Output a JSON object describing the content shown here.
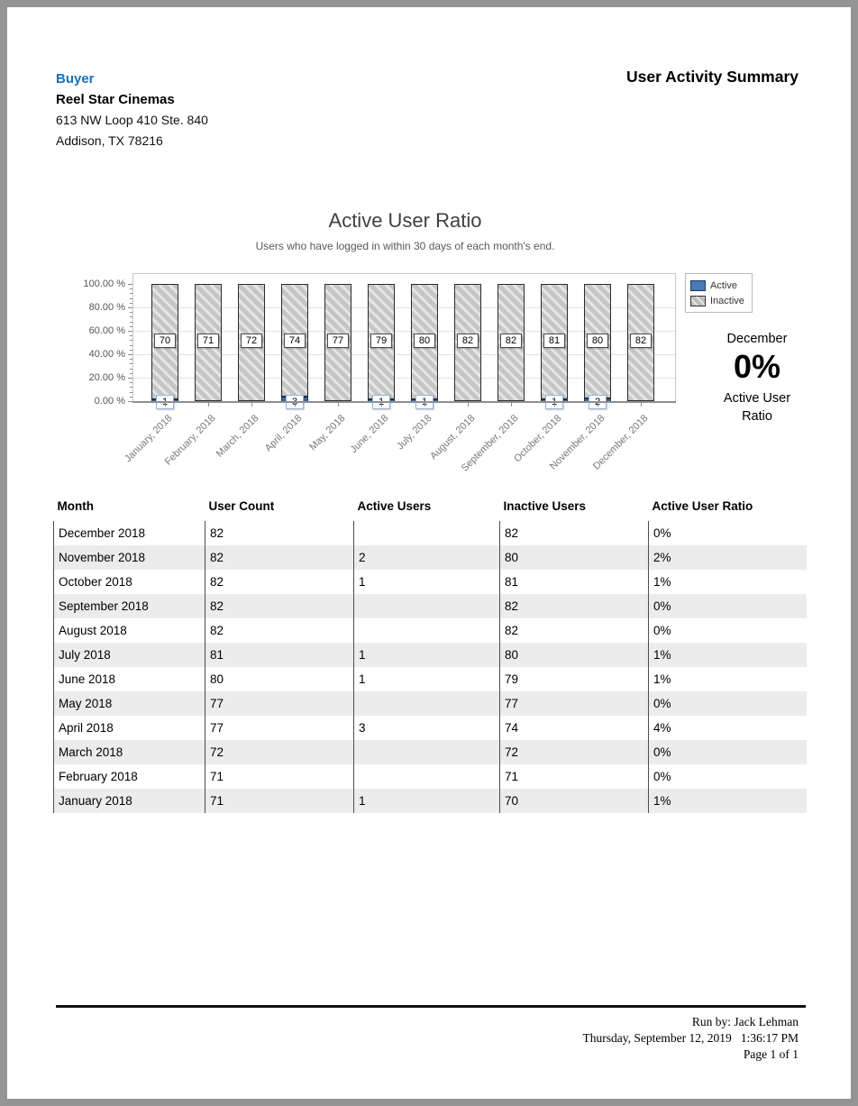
{
  "header": {
    "buyer_label": "Buyer",
    "company": "Reel Star Cinemas",
    "address_line1": "613 NW Loop 410 Ste. 840",
    "address_line2": "Addison, TX 78216",
    "report_title": "User Activity Summary"
  },
  "chart_data": {
    "type": "bar",
    "stacked": true,
    "title": "Active User Ratio",
    "subtitle": "Users who have logged in within 30 days of each month's end.",
    "categories": [
      "January, 2018",
      "February, 2018",
      "March, 2018",
      "April, 2018",
      "May, 2018",
      "June, 2018",
      "July, 2018",
      "August, 2018",
      "September, 2018",
      "October, 2018",
      "November, 2018",
      "December, 2018"
    ],
    "series": [
      {
        "name": "Active",
        "color": "#4a7ab5",
        "values": [
          1,
          0,
          0,
          3,
          0,
          1,
          1,
          0,
          0,
          1,
          2,
          0
        ]
      },
      {
        "name": "Inactive",
        "color": "#c6c6c6",
        "values": [
          70,
          71,
          72,
          74,
          77,
          79,
          80,
          82,
          82,
          81,
          80,
          82
        ]
      }
    ],
    "value_axis": "percent of total users",
    "y_ticks": [
      "0.00 %",
      "20.00 %",
      "40.00 %",
      "60.00 %",
      "80.00 %",
      "100.00 %"
    ],
    "ylim": [
      0,
      100
    ],
    "grid": true,
    "legend_position": "top-right",
    "summary": {
      "month": "December",
      "value": "0%",
      "caption": "Active User Ratio"
    }
  },
  "table": {
    "columns": [
      "Month",
      "User Count",
      "Active Users",
      "Inactive Users",
      "Active User Ratio"
    ],
    "rows": [
      {
        "month": "December 2018",
        "user_count": "82",
        "active": "",
        "inactive": "82",
        "ratio": "0%"
      },
      {
        "month": "November 2018",
        "user_count": "82",
        "active": "2",
        "inactive": "80",
        "ratio": "2%"
      },
      {
        "month": "October 2018",
        "user_count": "82",
        "active": "1",
        "inactive": "81",
        "ratio": "1%"
      },
      {
        "month": "September 2018",
        "user_count": "82",
        "active": "",
        "inactive": "82",
        "ratio": "0%"
      },
      {
        "month": "August 2018",
        "user_count": "82",
        "active": "",
        "inactive": "82",
        "ratio": "0%"
      },
      {
        "month": "July 2018",
        "user_count": "81",
        "active": "1",
        "inactive": "80",
        "ratio": "1%"
      },
      {
        "month": "June 2018",
        "user_count": "80",
        "active": "1",
        "inactive": "79",
        "ratio": "1%"
      },
      {
        "month": "May 2018",
        "user_count": "77",
        "active": "",
        "inactive": "77",
        "ratio": "0%"
      },
      {
        "month": "April 2018",
        "user_count": "77",
        "active": "3",
        "inactive": "74",
        "ratio": "4%"
      },
      {
        "month": "March 2018",
        "user_count": "72",
        "active": "",
        "inactive": "72",
        "ratio": "0%"
      },
      {
        "month": "February 2018",
        "user_count": "71",
        "active": "",
        "inactive": "71",
        "ratio": "0%"
      },
      {
        "month": "January 2018",
        "user_count": "71",
        "active": "1",
        "inactive": "70",
        "ratio": "1%"
      }
    ]
  },
  "footer": {
    "run_by": "Run by: Jack Lehman",
    "run_date": "Thursday, September 12,  2019",
    "run_time": "1:36:17 PM",
    "page": "Page 1 of 1"
  },
  "colors": {
    "accent_blue": "#1a70b8",
    "active_bar_blue": "#3f6aa0",
    "legend_blue": "#4a7ab5",
    "inactive_grey": "#c6c6c6",
    "alt_row_grey": "#ececec"
  }
}
